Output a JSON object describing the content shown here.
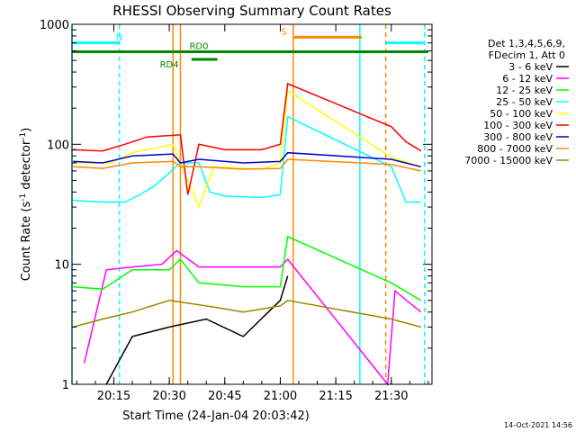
{
  "chart_data": {
    "type": "line",
    "title": "RHESSI Observing Summary Count Rates",
    "xlabel": "Start Time (24-Jan-04 20:03:42)",
    "ylabel": "Count Rate (s^-1 detector^-1)",
    "ylabel_main": "Count Rate (s",
    "ylabel_sup": "-1",
    "ylabel_tail": " detector",
    "ylabel_sup2": "-1",
    "ylabel_close": ")",
    "y_scale": "log",
    "ylim": [
      1,
      1000
    ],
    "xlim": [
      "20:03:42",
      "21:41:00"
    ],
    "x_ticks": [
      "20:15",
      "20:30",
      "20:45",
      "21:00",
      "21:15",
      "21:30"
    ],
    "y_ticks": [
      {
        "value": 1,
        "label": "1"
      },
      {
        "value": 10,
        "label": "10"
      },
      {
        "value": 100,
        "label": "100"
      },
      {
        "value": 1000,
        "label": "1000"
      }
    ],
    "legend": {
      "header": [
        "Det 1,3,4,5,6,9,",
        "FDecim 1, Att 0"
      ],
      "placement": "right"
    },
    "series": [
      {
        "name": "3 - 6 keV",
        "color": "#000000",
        "points": [
          [
            "20:13",
            1
          ],
          [
            "20:20",
            2.5
          ],
          [
            "20:30",
            3
          ],
          [
            "20:40",
            3.5
          ],
          [
            "20:50",
            2.5
          ],
          [
            "21:00",
            5
          ],
          [
            "21:02",
            8
          ]
        ]
      },
      {
        "name": "6 - 12 keV",
        "color": "#ff00ff",
        "points": [
          [
            "20:07",
            1.5
          ],
          [
            "20:13",
            9
          ],
          [
            "20:20",
            9.5
          ],
          [
            "20:28",
            10
          ],
          [
            "20:32",
            13
          ],
          [
            "20:38",
            9.5
          ],
          [
            "20:50",
            9.5
          ],
          [
            "21:00",
            9.5
          ],
          [
            "21:02",
            11
          ],
          [
            "21:29",
            1
          ],
          [
            "21:31",
            6
          ],
          [
            "21:38",
            4
          ]
        ]
      },
      {
        "name": "12 - 25 keV",
        "color": "#00ff00",
        "points": [
          [
            "20:04",
            6.5
          ],
          [
            "20:12",
            6.2
          ],
          [
            "20:20",
            9
          ],
          [
            "20:30",
            9
          ],
          [
            "20:33",
            11
          ],
          [
            "20:38",
            7
          ],
          [
            "20:50",
            6.5
          ],
          [
            "21:00",
            6.5
          ],
          [
            "21:02",
            17
          ],
          [
            "21:30",
            7
          ],
          [
            "21:38",
            5
          ]
        ]
      },
      {
        "name": "25 - 50 keV",
        "color": "#00ffff",
        "points": [
          [
            "20:04",
            34
          ],
          [
            "20:12",
            33
          ],
          [
            "20:18",
            33
          ],
          [
            "20:22",
            38
          ],
          [
            "20:26",
            45
          ],
          [
            "20:33",
            70
          ],
          [
            "20:38",
            70
          ],
          [
            "20:41",
            40
          ],
          [
            "20:45",
            37
          ],
          [
            "20:55",
            36
          ],
          [
            "21:00",
            38
          ],
          [
            "21:02",
            170
          ],
          [
            "21:30",
            65
          ],
          [
            "21:34",
            33
          ],
          [
            "21:38",
            33
          ]
        ]
      },
      {
        "name": "50 - 100 keV",
        "color": "#ffff00",
        "points": [
          [
            "20:04",
            70
          ],
          [
            "20:14",
            70
          ],
          [
            "20:20",
            85
          ],
          [
            "20:31",
            100
          ],
          [
            "20:33",
            70
          ],
          [
            "20:38",
            30
          ],
          [
            "20:42",
            65
          ],
          [
            "20:55",
            62
          ],
          [
            "21:00",
            70
          ],
          [
            "21:02",
            280
          ],
          [
            "21:30",
            78
          ],
          [
            "21:38",
            65
          ]
        ]
      },
      {
        "name": "100 - 300 keV",
        "color": "#ff0000",
        "points": [
          [
            "20:04",
            90
          ],
          [
            "20:12",
            88
          ],
          [
            "20:18",
            100
          ],
          [
            "20:24",
            115
          ],
          [
            "20:33",
            120
          ],
          [
            "20:35",
            38
          ],
          [
            "20:38",
            100
          ],
          [
            "20:45",
            90
          ],
          [
            "20:55",
            90
          ],
          [
            "21:00",
            100
          ],
          [
            "21:02",
            320
          ],
          [
            "21:30",
            140
          ],
          [
            "21:34",
            105
          ],
          [
            "21:38",
            88
          ]
        ]
      },
      {
        "name": "300 - 800 keV",
        "color": "#0000cc",
        "points": [
          [
            "20:04",
            72
          ],
          [
            "20:12",
            70
          ],
          [
            "20:20",
            80
          ],
          [
            "20:31",
            83
          ],
          [
            "20:33",
            70
          ],
          [
            "20:38",
            75
          ],
          [
            "20:50",
            70
          ],
          [
            "21:00",
            72
          ],
          [
            "21:02",
            85
          ],
          [
            "21:30",
            75
          ],
          [
            "21:38",
            65
          ]
        ]
      },
      {
        "name": "800 - 7000 keV",
        "color": "#ff8800",
        "points": [
          [
            "20:04",
            65
          ],
          [
            "20:12",
            63
          ],
          [
            "20:20",
            70
          ],
          [
            "20:31",
            72
          ],
          [
            "20:33",
            65
          ],
          [
            "20:38",
            65
          ],
          [
            "20:50",
            62
          ],
          [
            "21:00",
            63
          ],
          [
            "21:02",
            75
          ],
          [
            "21:30",
            68
          ],
          [
            "21:38",
            60
          ]
        ]
      },
      {
        "name": "7000 - 15000 keV",
        "color": "#998800",
        "points": [
          [
            "20:04",
            3
          ],
          [
            "20:12",
            3.5
          ],
          [
            "20:20",
            4
          ],
          [
            "20:30",
            5
          ],
          [
            "20:40",
            4.5
          ],
          [
            "20:50",
            4
          ],
          [
            "21:00",
            4.5
          ],
          [
            "21:02",
            5
          ],
          [
            "21:30",
            3.5
          ],
          [
            "21:38",
            3
          ]
        ]
      }
    ],
    "vertical_lines": [
      {
        "time": "20:03:42",
        "color": "#00ffff",
        "dashed": false
      },
      {
        "time": "20:16:30",
        "color": "#00ffff",
        "dashed": true
      },
      {
        "time": "20:31:00",
        "color": "#ff8800",
        "dashed": false
      },
      {
        "time": "20:33:00",
        "color": "#ff8800",
        "dashed": false
      },
      {
        "time": "21:03:30",
        "color": "#ff8800",
        "dashed": false
      },
      {
        "time": "21:21:30",
        "color": "#00ffff",
        "dashed": false
      },
      {
        "time": "21:28:30",
        "color": "#ff8800",
        "dashed": true
      },
      {
        "time": "21:39:00",
        "color": "#00ffff",
        "dashed": true
      }
    ],
    "bars": [
      {
        "label": "N",
        "color": "#00ffff",
        "y_value": 700,
        "segments": [
          [
            "20:03:42",
            "20:16:30"
          ],
          [
            "21:28:30",
            "21:39:00"
          ]
        ],
        "label_time": "20:16:30"
      },
      {
        "label": "S",
        "color": "#ff8800",
        "y_value": 780,
        "segments": [
          [
            "21:03:30",
            "21:22:00"
          ]
        ],
        "label_time": "21:01:00"
      },
      {
        "label": "RD0",
        "color": "#008800",
        "y_value": 590,
        "segments": [
          [
            "20:03:42",
            "21:40:00"
          ]
        ],
        "label_time": "20:38:00"
      },
      {
        "label": "RD4",
        "color": "#008800",
        "y_value": 510,
        "segments": [
          [
            "20:36:00",
            "20:43:00"
          ]
        ],
        "label_time": "20:30:00"
      }
    ]
  },
  "footer_timestamp": "14-Oct-2021 14:56"
}
